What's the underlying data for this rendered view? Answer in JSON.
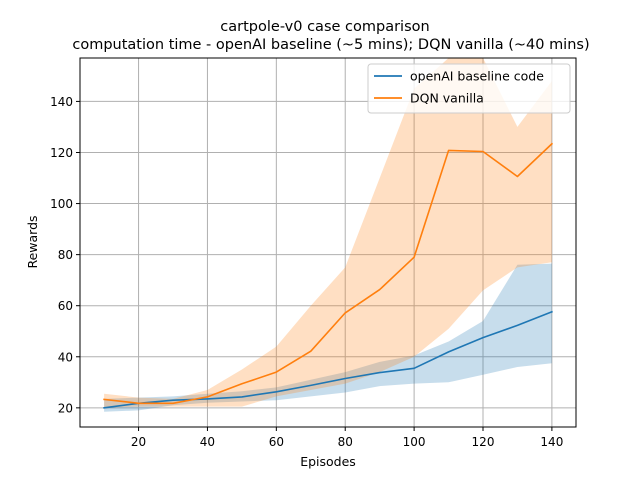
{
  "chart_data": {
    "type": "line",
    "title": "cartpole-v0 case comparison",
    "subtitle": "computation time - openAI baseline (~5 mins); DQN vanilla (~40 mins)",
    "xlabel": "Episodes",
    "ylabel": "Rewards",
    "xlim": [
      3,
      147
    ],
    "ylim": [
      12.5,
      157
    ],
    "xticks": [
      20,
      40,
      60,
      80,
      100,
      120,
      140
    ],
    "yticks": [
      20,
      40,
      60,
      80,
      100,
      120,
      140
    ],
    "grid": true,
    "legend_position": "top-right",
    "x": [
      10,
      20,
      30,
      40,
      50,
      60,
      70,
      80,
      90,
      100,
      110,
      120,
      130,
      140
    ],
    "series": [
      {
        "name": "openAI baseline code",
        "color": "#1f77b4",
        "fill_color": "#1f77b4",
        "fill_opacity": 0.25,
        "values": [
          20,
          21.8,
          23,
          23.5,
          24.3,
          26.3,
          28.8,
          31.5,
          33.8,
          35.5,
          41.9,
          47.5,
          52.3,
          57.6
        ],
        "lower": [
          18.5,
          19,
          21,
          22,
          22.5,
          23,
          24.5,
          26,
          28.5,
          29.5,
          30,
          33,
          36,
          37.5
        ],
        "upper": [
          23.5,
          24,
          24.5,
          25.5,
          26.5,
          28,
          31,
          34,
          38,
          40.5,
          46,
          54,
          76,
          76.5
        ]
      },
      {
        "name": "DQN vanilla",
        "color": "#ff7f0e",
        "fill_color": "#ff7f0e",
        "fill_opacity": 0.25,
        "values": [
          23.3,
          21.8,
          21.8,
          24.3,
          29.4,
          34,
          42.2,
          57.2,
          66.3,
          79,
          120.8,
          120.4,
          110.6,
          123.4
        ],
        "lower": [
          20,
          20.5,
          20.5,
          20.5,
          20.5,
          24.5,
          27,
          29.5,
          34,
          40,
          51,
          66,
          75,
          77
        ],
        "upper": [
          25.5,
          24,
          23.5,
          27,
          35,
          44,
          60,
          75,
          110,
          145,
          160,
          160,
          130,
          148
        ]
      }
    ]
  }
}
